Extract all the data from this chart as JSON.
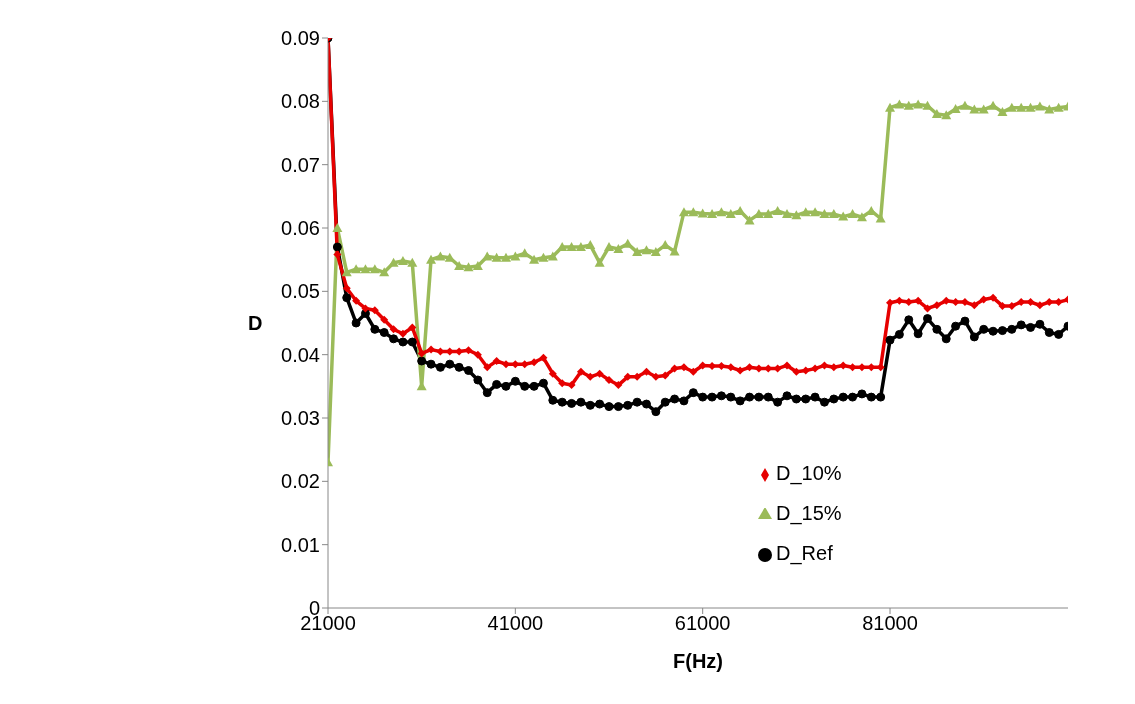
{
  "chart_data": {
    "type": "line",
    "xlabel": "F(Hz)",
    "ylabel": "D",
    "x": [
      21000,
      22000,
      23000,
      24000,
      25000,
      26000,
      27000,
      28000,
      29000,
      30000,
      31000,
      32000,
      33000,
      34000,
      35000,
      36000,
      37000,
      38000,
      39000,
      40000,
      41000,
      42000,
      43000,
      44000,
      45000,
      46000,
      47000,
      48000,
      49000,
      50000,
      51000,
      52000,
      53000,
      54000,
      55000,
      56000,
      57000,
      58000,
      59000,
      60000,
      61000,
      62000,
      63000,
      64000,
      65000,
      66000,
      67000,
      68000,
      69000,
      70000,
      71000,
      72000,
      73000,
      74000,
      75000,
      76000,
      77000,
      78000,
      79000,
      80000,
      81000,
      82000,
      83000,
      84000,
      85000,
      86000,
      87000,
      88000,
      89000,
      90000,
      91000,
      92000,
      93000,
      94000,
      95000,
      96000,
      97000,
      98000,
      99000,
      100000
    ],
    "series": [
      {
        "name": "D_Ref",
        "color": "#000000",
        "marker": "circle",
        "values": [
          0.09,
          0.057,
          0.049,
          0.045,
          0.0465,
          0.044,
          0.0435,
          0.0425,
          0.042,
          0.042,
          0.039,
          0.0385,
          0.038,
          0.0385,
          0.038,
          0.0375,
          0.036,
          0.034,
          0.0353,
          0.035,
          0.0358,
          0.035,
          0.035,
          0.0355,
          0.0328,
          0.0325,
          0.0323,
          0.0325,
          0.032,
          0.0322,
          0.0318,
          0.0318,
          0.032,
          0.0325,
          0.0322,
          0.031,
          0.0325,
          0.033,
          0.0327,
          0.034,
          0.0333,
          0.0333,
          0.0335,
          0.0333,
          0.0327,
          0.0333,
          0.0333,
          0.0333,
          0.0325,
          0.0335,
          0.033,
          0.033,
          0.0333,
          0.0325,
          0.033,
          0.0333,
          0.0333,
          0.0338,
          0.0333,
          0.0333,
          0.0423,
          0.0432,
          0.0455,
          0.0433,
          0.0457,
          0.044,
          0.0425,
          0.0445,
          0.0453,
          0.0428,
          0.044,
          0.0437,
          0.0438,
          0.044,
          0.0447,
          0.0443,
          0.0448,
          0.0435,
          0.0432,
          0.0445
        ]
      },
      {
        "name": "D_15%",
        "color": "#9bbb59",
        "marker": "triangle",
        "values": [
          0.023,
          0.06,
          0.053,
          0.0535,
          0.0535,
          0.0535,
          0.053,
          0.0545,
          0.0548,
          0.0545,
          0.035,
          0.055,
          0.0555,
          0.0553,
          0.054,
          0.0538,
          0.054,
          0.0555,
          0.0553,
          0.0553,
          0.0555,
          0.056,
          0.055,
          0.0553,
          0.0555,
          0.057,
          0.057,
          0.057,
          0.0573,
          0.0545,
          0.057,
          0.0567,
          0.0575,
          0.0562,
          0.0565,
          0.0562,
          0.0573,
          0.0563,
          0.0625,
          0.0625,
          0.0623,
          0.0622,
          0.0625,
          0.0622,
          0.0627,
          0.0612,
          0.0622,
          0.0622,
          0.0627,
          0.0622,
          0.062,
          0.0625,
          0.0625,
          0.0622,
          0.0622,
          0.0618,
          0.0622,
          0.0617,
          0.0627,
          0.0615,
          0.079,
          0.0795,
          0.0793,
          0.0795,
          0.0793,
          0.078,
          0.0778,
          0.0788,
          0.0793,
          0.0787,
          0.0787,
          0.0793,
          0.0783,
          0.079,
          0.079,
          0.079,
          0.0792,
          0.0787,
          0.079,
          0.0792
        ]
      },
      {
        "name": "D_10%",
        "color": "#e60000",
        "marker": "diamond",
        "values": [
          0.09,
          0.0558,
          0.0505,
          0.0485,
          0.0473,
          0.047,
          0.0455,
          0.044,
          0.0433,
          0.0443,
          0.0402,
          0.0408,
          0.0405,
          0.0405,
          0.0405,
          0.0407,
          0.04,
          0.038,
          0.039,
          0.0385,
          0.0385,
          0.0385,
          0.0388,
          0.0395,
          0.037,
          0.0355,
          0.0352,
          0.0373,
          0.0365,
          0.037,
          0.036,
          0.0352,
          0.0365,
          0.0365,
          0.0373,
          0.0365,
          0.0367,
          0.0378,
          0.038,
          0.0373,
          0.0383,
          0.0382,
          0.0382,
          0.038,
          0.0375,
          0.038,
          0.0378,
          0.0378,
          0.0378,
          0.0383,
          0.0373,
          0.0375,
          0.0378,
          0.0383,
          0.038,
          0.0383,
          0.038,
          0.038,
          0.038,
          0.038,
          0.0482,
          0.0485,
          0.0483,
          0.0485,
          0.0473,
          0.0478,
          0.0485,
          0.0483,
          0.0483,
          0.0478,
          0.0487,
          0.049,
          0.0477,
          0.0477,
          0.0483,
          0.0483,
          0.0478,
          0.0483,
          0.0483,
          0.0487
        ]
      }
    ],
    "xlim": [
      21000,
      100000
    ],
    "xticks": [
      21000,
      41000,
      61000,
      81000
    ],
    "ylim": [
      0,
      0.09
    ],
    "yticks": [
      0,
      0.01,
      0.02,
      0.03,
      0.04,
      0.05,
      0.06,
      0.07,
      0.08,
      0.09
    ],
    "grid": false,
    "legend": "bottom right",
    "line_style": "solid"
  }
}
